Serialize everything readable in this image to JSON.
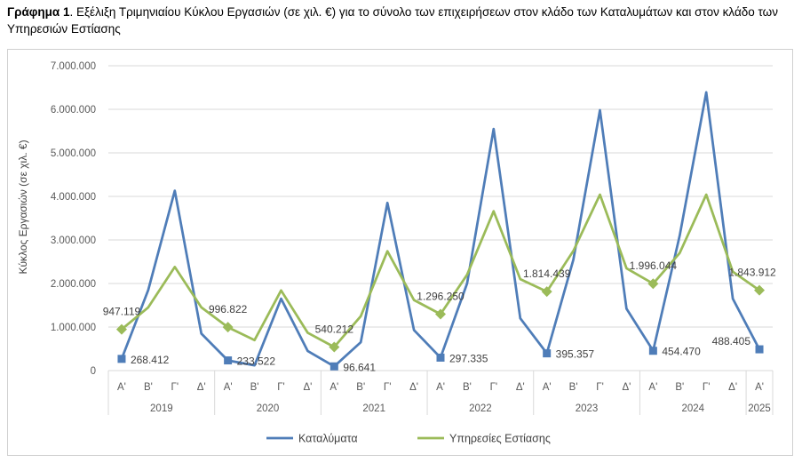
{
  "caption": {
    "bold": "Γράφημα 1",
    "text": ". Εξέλιξη Τριμηνιαίου Κύκλου Εργασιών (σε χιλ. €) για το σύνολο των επιχειρήσεων στον κλάδο των Καταλυμάτων και στον κλάδο των Υπηρεσιών Εστίασης"
  },
  "chart_data": {
    "type": "line",
    "ylabel": "Κύκλος Εργασιών (σε χιλ. €)",
    "ylim": [
      0,
      7000000
    ],
    "ytick_labels": [
      "0",
      "1.000.000",
      "2.000.000",
      "3.000.000",
      "4.000.000",
      "5.000.000",
      "6.000.000",
      "7.000.000"
    ],
    "grid": true,
    "legend": "bottom",
    "quarters": [
      "Α'",
      "Β'",
      "Γ'",
      "Δ'",
      "Α'",
      "Β'",
      "Γ'",
      "Δ'",
      "Α'",
      "Β'",
      "Γ'",
      "Δ'",
      "Α'",
      "Β'",
      "Γ'",
      "Δ'",
      "Α'",
      "Β'",
      "Γ'",
      "Δ'",
      "Α'",
      "Β'",
      "Γ'",
      "Δ'",
      "Α'"
    ],
    "years": [
      {
        "label": "2019",
        "span": 4
      },
      {
        "label": "2020",
        "span": 4
      },
      {
        "label": "2021",
        "span": 4
      },
      {
        "label": "2022",
        "span": 4
      },
      {
        "label": "2023",
        "span": 4
      },
      {
        "label": "2024",
        "span": 4
      },
      {
        "label": "2025",
        "span": 1
      }
    ],
    "series": [
      {
        "name": "Καταλύματα",
        "color": "#4f7db8",
        "marker": "square",
        "values": [
          268412,
          1850000,
          4130000,
          850000,
          233522,
          120000,
          1650000,
          450000,
          96641,
          650000,
          3850000,
          930000,
          297335,
          2000000,
          5550000,
          1200000,
          395357,
          2550000,
          5980000,
          1420000,
          454470,
          3100000,
          6390000,
          1650000,
          488405
        ],
        "labels": [
          {
            "index": 0,
            "text": "268.412"
          },
          {
            "index": 4,
            "text": "233.522"
          },
          {
            "index": 8,
            "text": "96.641"
          },
          {
            "index": 12,
            "text": "297.335"
          },
          {
            "index": 16,
            "text": "395.357"
          },
          {
            "index": 20,
            "text": "454.470"
          },
          {
            "index": 24,
            "text": "488.405"
          }
        ]
      },
      {
        "name": "Υπηρεσίες Εστίασης",
        "color": "#9bbb59",
        "marker": "diamond",
        "values": [
          947119,
          1450000,
          2380000,
          1450000,
          996822,
          700000,
          1840000,
          870000,
          540212,
          1250000,
          2740000,
          1620000,
          1296250,
          2200000,
          3660000,
          2100000,
          1814439,
          2750000,
          4040000,
          2350000,
          1996044,
          2700000,
          4040000,
          2270000,
          1843912
        ],
        "labels": [
          {
            "index": 0,
            "text": "947.119"
          },
          {
            "index": 4,
            "text": "996.822"
          },
          {
            "index": 8,
            "text": "540.212"
          },
          {
            "index": 12,
            "text": "1.296.250"
          },
          {
            "index": 16,
            "text": "1.814.439"
          },
          {
            "index": 20,
            "text": "1.996.044"
          },
          {
            "index": 24,
            "text": "1.843.912"
          }
        ]
      }
    ]
  }
}
